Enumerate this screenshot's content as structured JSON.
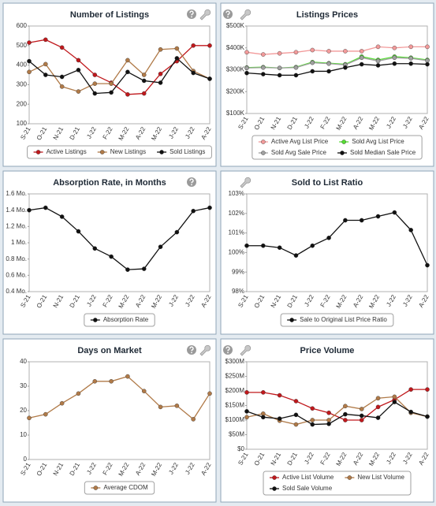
{
  "chart_data": [
    {
      "type": "line",
      "title": "Number of Listings",
      "categories": [
        "S-21",
        "O-21",
        "N-21",
        "D-21",
        "J-22",
        "F-22",
        "M-22",
        "A-22",
        "M-22",
        "J-22",
        "J-22",
        "A-22"
      ],
      "series": [
        {
          "name": "Active Listings",
          "color": "#c0181c",
          "values": [
            515,
            530,
            490,
            425,
            350,
            310,
            250,
            255,
            355,
            420,
            500,
            500
          ]
        },
        {
          "name": "New Listings",
          "color": "#b07a48",
          "values": [
            365,
            405,
            290,
            265,
            305,
            305,
            425,
            350,
            480,
            485,
            370,
            330
          ]
        },
        {
          "name": "Sold Listings",
          "color": "#111111",
          "values": [
            420,
            350,
            340,
            375,
            255,
            260,
            365,
            320,
            310,
            435,
            360,
            330
          ]
        }
      ],
      "ylim": [
        100,
        600
      ],
      "yticks": [
        100,
        200,
        300,
        400,
        500,
        600
      ],
      "grid": false
    },
    {
      "type": "line",
      "title": "Listings Prices",
      "categories": [
        "S-21",
        "O-21",
        "N-21",
        "D-21",
        "J-22",
        "F-22",
        "M-22",
        "A-22",
        "M-22",
        "J-22",
        "J-22",
        "A-22"
      ],
      "series": [
        {
          "name": "Active Avg List Price",
          "color": "#f29a9a",
          "values": [
            380000,
            370000,
            375000,
            380000,
            390000,
            385000,
            385000,
            385000,
            405000,
            400000,
            405000,
            405000
          ]
        },
        {
          "name": "Sold Avg List Price",
          "color": "#55dd33",
          "values": [
            310000,
            312000,
            308000,
            312000,
            335000,
            330000,
            325000,
            360000,
            345000,
            360000,
            355000,
            345000
          ]
        },
        {
          "name": "Sold Avg Sale Price",
          "color": "#a0a0a0",
          "values": [
            308000,
            310000,
            308000,
            310000,
            332000,
            328000,
            322000,
            355000,
            340000,
            355000,
            352000,
            342000
          ]
        },
        {
          "name": "Sold Median Sale Price",
          "color": "#111111",
          "values": [
            285000,
            280000,
            275000,
            275000,
            293000,
            293000,
            310000,
            325000,
            320000,
            328000,
            328000,
            325000
          ]
        }
      ],
      "ylim": [
        100000,
        500000
      ],
      "yticks": [
        {
          "value": 100000,
          "label": "$100K"
        },
        {
          "value": 200000,
          "label": "$200K"
        },
        {
          "value": 300000,
          "label": "$300K"
        },
        {
          "value": 400000,
          "label": "$400K"
        },
        {
          "value": 500000,
          "label": "$500K"
        }
      ],
      "grid": false
    },
    {
      "type": "line",
      "title": "Absorption Rate, in Months",
      "categories": [
        "S-21",
        "O-21",
        "N-21",
        "D-21",
        "J-22",
        "F-22",
        "M-22",
        "A-22",
        "M-22",
        "J-22",
        "J-22",
        "A-22"
      ],
      "series": [
        {
          "name": "Absorption Rate",
          "color": "#111111",
          "values": [
            1.4,
            1.43,
            1.32,
            1.14,
            0.93,
            0.83,
            0.67,
            0.68,
            0.95,
            1.13,
            1.39,
            1.43
          ]
        }
      ],
      "ylim": [
        0.4,
        1.6
      ],
      "yticks": [
        {
          "value": 0.4,
          "label": "0.4 Mo."
        },
        {
          "value": 0.6,
          "label": "0.6 Mo."
        },
        {
          "value": 0.8,
          "label": "0.8 Mo."
        },
        {
          "value": 1,
          "label": "1 Mo."
        },
        {
          "value": 1.2,
          "label": "1.2 Mo."
        },
        {
          "value": 1.4,
          "label": "1.4 Mo."
        },
        {
          "value": 1.6,
          "label": "1.6 Mo."
        }
      ],
      "grid": false
    },
    {
      "type": "line",
      "title": "Sold to List Ratio",
      "categories": [
        "S-21",
        "O-21",
        "N-21",
        "D-21",
        "J-22",
        "F-22",
        "M-22",
        "A-22",
        "M-22",
        "J-22",
        "J-22",
        "A-22"
      ],
      "series": [
        {
          "name": "Sale to Original List Price Ratio",
          "color": "#111111",
          "values": [
            100.35,
            100.35,
            100.25,
            99.85,
            100.35,
            100.75,
            101.65,
            101.65,
            101.85,
            102.05,
            101.15,
            99.35
          ]
        }
      ],
      "ylim": [
        98,
        103
      ],
      "yticks": [
        {
          "value": 98,
          "label": "98%"
        },
        {
          "value": 99,
          "label": "99%"
        },
        {
          "value": 100,
          "label": "100%"
        },
        {
          "value": 101,
          "label": "101%"
        },
        {
          "value": 102,
          "label": "102%"
        },
        {
          "value": 103,
          "label": "103%"
        }
      ],
      "grid": false
    },
    {
      "type": "line",
      "title": "Days on Market",
      "categories": [
        "S-21",
        "O-21",
        "N-21",
        "D-21",
        "J-22",
        "F-22",
        "M-22",
        "A-22",
        "M-22",
        "J-22",
        "J-22",
        "A-22"
      ],
      "series": [
        {
          "name": "Average CDOM",
          "color": "#b07a48",
          "values": [
            17,
            18.5,
            23,
            27,
            32,
            32,
            34,
            28,
            21.5,
            22,
            16.5,
            27
          ]
        }
      ],
      "ylim": [
        0,
        40
      ],
      "yticks": [
        0,
        10,
        20,
        30,
        40
      ],
      "grid": false
    },
    {
      "type": "line",
      "title": "Price Volume",
      "categories": [
        "S-21",
        "O-21",
        "N-21",
        "D-21",
        "J-22",
        "F-22",
        "M-22",
        "A-22",
        "M-22",
        "J-22",
        "J-22",
        "A-22"
      ],
      "series": [
        {
          "name": "Active List Volume",
          "color": "#c0181c",
          "values": [
            195000000,
            195000000,
            185000000,
            165000000,
            140000000,
            125000000,
            100000000,
            100000000,
            145000000,
            170000000,
            205000000,
            205000000
          ]
        },
        {
          "name": "New List Volume",
          "color": "#b07a48",
          "values": [
            110000000,
            122000000,
            98000000,
            85000000,
            100000000,
            100000000,
            148000000,
            138000000,
            175000000,
            180000000,
            125000000,
            112000000
          ]
        },
        {
          "name": "Sold Sale Volume",
          "color": "#111111",
          "values": [
            130000000,
            110000000,
            105000000,
            118000000,
            85000000,
            87000000,
            120000000,
            115000000,
            108000000,
            162000000,
            128000000,
            112000000
          ]
        }
      ],
      "ylim": [
        0,
        300000000
      ],
      "yticks": [
        {
          "value": 0,
          "label": "$0"
        },
        {
          "value": 50000000,
          "label": "$50M"
        },
        {
          "value": 100000000,
          "label": "$100M"
        },
        {
          "value": 150000000,
          "label": "$150M"
        },
        {
          "value": 200000000,
          "label": "$200M"
        },
        {
          "value": 250000000,
          "label": "$250M"
        },
        {
          "value": 300000000,
          "label": "$300M"
        }
      ],
      "grid": false
    }
  ]
}
